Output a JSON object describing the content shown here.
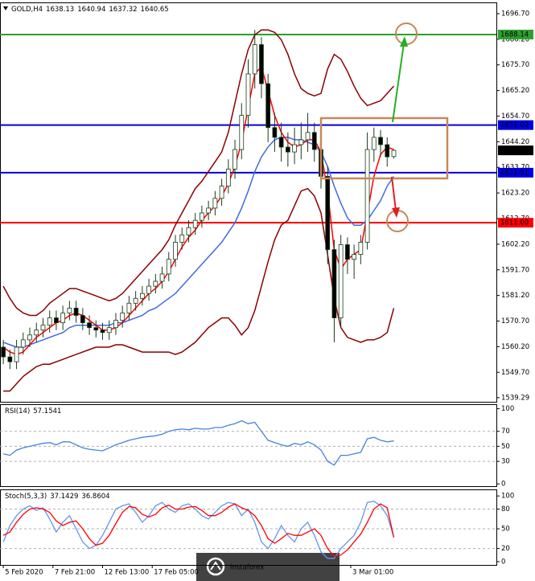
{
  "chart_data": [
    {
      "type": "candlestick",
      "title": "GOLD,H4",
      "xlim": [
        -0.5,
        74.5
      ],
      "ylim": [
        1537.6,
        1701.3
      ],
      "yticks": [
        {
          "value": 1696.7,
          "label": "1696.70"
        },
        {
          "value": 1686.2,
          "label": "1686.20"
        },
        {
          "value": 1675.7,
          "label": "1675.70"
        },
        {
          "value": 1665.2,
          "label": "1665.20"
        },
        {
          "value": 1654.7,
          "label": "1654.70"
        },
        {
          "value": 1644.2,
          "label": "1644.20"
        },
        {
          "value": 1633.7,
          "label": "1633.70"
        },
        {
          "value": 1623.2,
          "label": "1623.20"
        },
        {
          "value": 1612.7,
          "label": "1612.70"
        },
        {
          "value": 1602.2,
          "label": "1602.20"
        },
        {
          "value": 1591.7,
          "label": "1591.70"
        },
        {
          "value": 1581.2,
          "label": "1581.20"
        },
        {
          "value": 1570.7,
          "label": "1570.70"
        },
        {
          "value": 1560.2,
          "label": "1560.20"
        },
        {
          "value": 1549.7,
          "label": "1549.70"
        },
        1539.29
      ],
      "up_color": "#ffffff",
      "down_color": "#000000",
      "candle_outline": "#1a3d1a",
      "open": [
        1560,
        1556,
        1554,
        1560,
        1563,
        1565,
        1567,
        1569,
        1572,
        1570,
        1574,
        1576,
        1573,
        1570,
        1568,
        1567,
        1566,
        1568,
        1571,
        1574,
        1578,
        1580,
        1582,
        1585,
        1587,
        1590,
        1596,
        1603,
        1606,
        1609,
        1612,
        1615,
        1617,
        1621,
        1626,
        1633,
        1641,
        1655,
        1672,
        1684,
        1668,
        1650,
        1646,
        1642,
        1640,
        1643,
        1645,
        1648,
        1641,
        1630,
        1600,
        1572,
        1602,
        1596,
        1598,
        1603,
        1641,
        1646,
        1643,
        1638.13
      ],
      "high": [
        1563,
        1559,
        1563,
        1566,
        1568,
        1570,
        1572,
        1575,
        1575,
        1577,
        1579,
        1579,
        1576,
        1573,
        1571,
        1570,
        1571,
        1574,
        1577,
        1581,
        1583,
        1585,
        1588,
        1590,
        1593,
        1599,
        1606,
        1609,
        1612,
        1615,
        1618,
        1620,
        1624,
        1629,
        1637,
        1645,
        1660,
        1678,
        1690,
        1687,
        1672,
        1656,
        1652,
        1648,
        1650,
        1652,
        1656,
        1652,
        1645,
        1634,
        1604,
        1606,
        1605,
        1602,
        1606,
        1648,
        1650,
        1649,
        1646,
        1640.94
      ],
      "low": [
        1553,
        1551,
        1551,
        1557,
        1560,
        1562,
        1564,
        1566,
        1567,
        1567,
        1571,
        1570,
        1567,
        1565,
        1564,
        1563,
        1563,
        1565,
        1568,
        1571,
        1575,
        1577,
        1579,
        1582,
        1584,
        1587,
        1593,
        1600,
        1603,
        1606,
        1609,
        1612,
        1614,
        1618,
        1623,
        1629,
        1637,
        1650,
        1666,
        1662,
        1644,
        1640,
        1636,
        1634,
        1635,
        1637,
        1640,
        1636,
        1625,
        1594,
        1562,
        1568,
        1590,
        1588,
        1594,
        1600,
        1636,
        1638,
        1634,
        1637.32
      ],
      "close": [
        1556,
        1554,
        1560,
        1563,
        1565,
        1567,
        1569,
        1572,
        1570,
        1574,
        1576,
        1573,
        1570,
        1568,
        1567,
        1566,
        1568,
        1571,
        1574,
        1578,
        1580,
        1582,
        1585,
        1587,
        1590,
        1596,
        1603,
        1606,
        1609,
        1612,
        1615,
        1617,
        1621,
        1626,
        1633,
        1641,
        1655,
        1672,
        1684,
        1668,
        1650,
        1646,
        1642,
        1640,
        1643,
        1645,
        1648,
        1641,
        1630,
        1600,
        1572,
        1602,
        1596,
        1598,
        1603,
        1641,
        1646,
        1643,
        1638,
        1640.65
      ],
      "series": [
        {
          "color": "#8b0000",
          "values": [
            1585,
            1580,
            1576,
            1574,
            1573,
            1573,
            1575,
            1578,
            1580,
            1582,
            1584,
            1584,
            1583,
            1582,
            1581,
            1580,
            1579,
            1580,
            1582,
            1585,
            1588,
            1591,
            1594,
            1597,
            1600,
            1604,
            1610,
            1615,
            1620,
            1625,
            1628,
            1632,
            1636,
            1640,
            1648,
            1660,
            1672,
            1682,
            1688,
            1690,
            1690,
            1689,
            1686,
            1680,
            1672,
            1666,
            1664,
            1663,
            1664,
            1674,
            1680,
            1678,
            1673,
            1667,
            1662,
            1659,
            1660,
            1661,
            1664,
            1667
          ]
        },
        {
          "color": "#8b0000",
          "values": [
            1542,
            1542,
            1545,
            1548,
            1550,
            1552,
            1553,
            1553,
            1554,
            1555,
            1556,
            1557,
            1558,
            1559,
            1560,
            1560,
            1560,
            1561,
            1561,
            1560,
            1559,
            1558,
            1558,
            1558,
            1558,
            1558,
            1557,
            1558,
            1560,
            1562,
            1565,
            1568,
            1570,
            1572,
            1572,
            1569,
            1565,
            1568,
            1575,
            1585,
            1595,
            1604,
            1610,
            1612,
            1618,
            1624,
            1625,
            1622,
            1615,
            1598,
            1580,
            1568,
            1564,
            1563,
            1562,
            1563,
            1563,
            1564,
            1566,
            1576
          ]
        },
        {
          "color": "#4169e1",
          "values": [
            1562,
            1561,
            1560,
            1560,
            1561,
            1562,
            1563,
            1564,
            1565,
            1566,
            1568,
            1569,
            1569,
            1569,
            1569,
            1569,
            1569,
            1570,
            1570,
            1571,
            1572,
            1573,
            1575,
            1576,
            1578,
            1580,
            1582,
            1585,
            1588,
            1591,
            1594,
            1597,
            1600,
            1603,
            1607,
            1611,
            1617,
            1624,
            1632,
            1638,
            1642,
            1645,
            1646,
            1646,
            1645,
            1645,
            1644,
            1643,
            1640,
            1634,
            1626,
            1619,
            1613,
            1610,
            1610,
            1612,
            1616,
            1620,
            1626,
            1630
          ]
        },
        {
          "color": "#ff0000",
          "values": [
            1560,
            1558,
            1557,
            1558,
            1561,
            1564,
            1566,
            1568,
            1570,
            1571,
            1573,
            1574,
            1573,
            1571,
            1569,
            1567,
            1567,
            1568,
            1570,
            1573,
            1576,
            1579,
            1582,
            1584,
            1587,
            1591,
            1596,
            1601,
            1605,
            1608,
            1612,
            1615,
            1618,
            1622,
            1627,
            1634,
            1644,
            1658,
            1672,
            1675,
            1665,
            1655,
            1648,
            1644,
            1642,
            1643,
            1645,
            1645,
            1640,
            1624,
            1600,
            1592,
            1596,
            1598,
            1600,
            1615,
            1630,
            1639,
            1642,
            1641
          ]
        }
      ],
      "hlines": [
        {
          "value": 1688.14,
          "label": "1688.14",
          "color": "#2ca02c"
        },
        {
          "value": 1651.02,
          "label": "1651.02",
          "color": "#0000dd"
        },
        {
          "value": 1631.51,
          "label": "1631.51",
          "color": "#0000dd"
        },
        {
          "value": 1611.0,
          "label": "1611.00",
          "color": "#ff0000"
        }
      ],
      "last_price": 1640.65,
      "watermark": "instaforex"
    },
    {
      "type": "line",
      "title": "RSI(14)",
      "xlim": [
        -0.5,
        74.5
      ],
      "ylim": [
        -3,
        106
      ],
      "yticks": [
        100,
        70,
        50,
        30,
        0
      ],
      "levels": [
        70,
        50,
        30
      ],
      "series": [
        {
          "color": "#4682e0",
          "values": [
            40,
            38,
            45,
            48,
            50,
            52,
            54,
            55,
            52,
            56,
            56,
            52,
            48,
            46,
            45,
            44,
            48,
            52,
            55,
            58,
            60,
            62,
            63,
            64,
            66,
            70,
            72,
            73,
            72,
            74,
            73,
            73,
            75,
            75,
            78,
            80,
            84,
            80,
            82,
            70,
            58,
            55,
            52,
            50,
            54,
            52,
            56,
            52,
            45,
            30,
            25,
            38,
            38,
            40,
            42,
            60,
            62,
            58,
            56,
            57.1541
          ]
        }
      ]
    },
    {
      "type": "line",
      "title": "Stoch(5,3,3)",
      "xlim": [
        -0.5,
        74.5
      ],
      "ylim": [
        -5,
        110
      ],
      "yticks": [
        100,
        80,
        50,
        20,
        0
      ],
      "levels": [
        80,
        50,
        20
      ],
      "series": [
        {
          "color": "#6495ed",
          "values": [
            30,
            55,
            70,
            80,
            85,
            78,
            82,
            65,
            45,
            60,
            70,
            50,
            30,
            20,
            25,
            40,
            60,
            80,
            85,
            88,
            75,
            60,
            70,
            85,
            90,
            80,
            75,
            85,
            88,
            80,
            70,
            65,
            75,
            85,
            90,
            88,
            70,
            80,
            60,
            30,
            20,
            35,
            55,
            40,
            30,
            50,
            60,
            40,
            15,
            5,
            5,
            20,
            30,
            40,
            60,
            90,
            92,
            85,
            70,
            37.1429
          ]
        },
        {
          "color": "#ff0000",
          "values": [
            40,
            45,
            60,
            72,
            80,
            82,
            80,
            75,
            62,
            55,
            60,
            62,
            50,
            35,
            25,
            28,
            40,
            58,
            75,
            84,
            82,
            72,
            68,
            72,
            82,
            86,
            80,
            80,
            83,
            84,
            78,
            70,
            70,
            75,
            83,
            88,
            82,
            78,
            70,
            55,
            35,
            28,
            35,
            43,
            40,
            40,
            45,
            50,
            40,
            20,
            8,
            10,
            18,
            30,
            42,
            60,
            80,
            88,
            82,
            36.8604
          ]
        }
      ],
      "xticks": [
        {
          "value": 0,
          "label": "5 Feb 2020"
        },
        {
          "value": 7.5,
          "label": "7 Feb 21:00"
        },
        {
          "value": 15,
          "label": "12 Feb 13:00"
        },
        {
          "value": 22.5,
          "label": "17 Feb 05:00"
        },
        {
          "value": 52.5,
          "label": "3 Mar 01:00"
        }
      ]
    }
  ]
}
